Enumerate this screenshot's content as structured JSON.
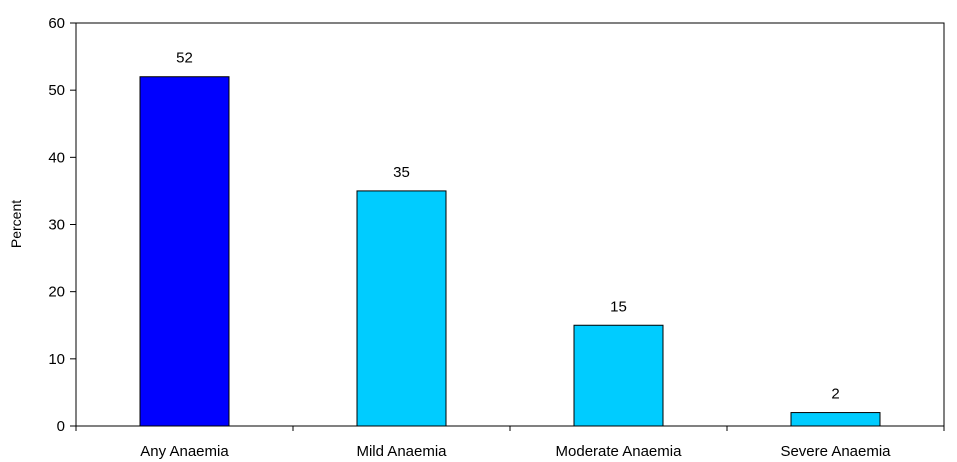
{
  "chart_data": {
    "type": "bar",
    "title": "",
    "xlabel": "",
    "ylabel": "Percent",
    "ylim": [
      0,
      60
    ],
    "yticks": [
      "0",
      "10",
      "20",
      "30",
      "40",
      "50",
      "60"
    ],
    "categories": [
      "Any Anaemia",
      "Mild Anaemia",
      "Moderate Anaemia",
      "Severe Anaemia"
    ],
    "values": [
      52,
      35,
      15,
      2
    ],
    "data_labels": [
      "52",
      "35",
      "15",
      "2"
    ],
    "bar_colors": [
      "#0000FF",
      "#00CCFF",
      "#00CCFF",
      "#00CCFF"
    ],
    "grid": false,
    "legend": "none"
  }
}
